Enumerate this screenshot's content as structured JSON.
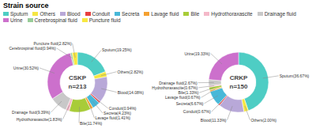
{
  "chart_data": {
    "type": "donut",
    "title": "Strain source",
    "categories": [
      "Sputum",
      "Others",
      "Blood",
      "Conduit",
      "Secreta",
      "Lavage fluid",
      "Bile",
      "Hydrothoraxascite",
      "Drainage fluid",
      "Urine",
      "Cerebrospinal fluid",
      "Puncture fluid"
    ],
    "colors": [
      "#4ecdc4",
      "#f5e642",
      "#b8a8d8",
      "#e84040",
      "#48b8d8",
      "#f4a030",
      "#a8cc38",
      "#f4b8c8",
      "#c8c8c8",
      "#cc70cc",
      "#98cc98",
      "#f8e840"
    ],
    "legend": "upper left",
    "series": [
      {
        "name": "CSKP\nn=213",
        "values": [
          19.25,
          2.82,
          14.08,
          0.94,
          4.23,
          1.41,
          11.74,
          1.83,
          9.39,
          30.52,
          0.94,
          2.82
        ],
        "value_labels": [
          "Sputum(19.25%)",
          "Others(2.82%)",
          "Blood(14.08%)",
          "Conduit(0.94%)",
          "Secreta(4.23%)",
          "Lavage fluid(1.41%)",
          "Bile(11.74%)",
          "Hydrothoraxascite(1.83%)",
          "Drainage fluid(9.39%)",
          "Urine(30.52%)",
          "Cerebrospinal fluid(0.94%)",
          "Puncture fluid(2.82%)"
        ]
      },
      {
        "name": "CRKP\nn=150",
        "values": [
          36.67,
          2.0,
          11.33,
          0.67,
          6.67,
          0.67,
          1.33,
          0.67,
          2.67,
          19.33,
          0.0,
          0.0
        ],
        "value_labels": [
          "Sputum(36.67%)",
          "Others(2.00%)",
          "Blood(11.33%)",
          "Conduit(0.67%)",
          "Secreta(6.67%)",
          "Lavage fluid(0.67%)",
          "Bile(1.33%)",
          "Hydrothoraxascite(0.67%)",
          "Drainage fluid(2.67%)",
          "Urine(19.33%)",
          null,
          null
        ]
      }
    ]
  }
}
